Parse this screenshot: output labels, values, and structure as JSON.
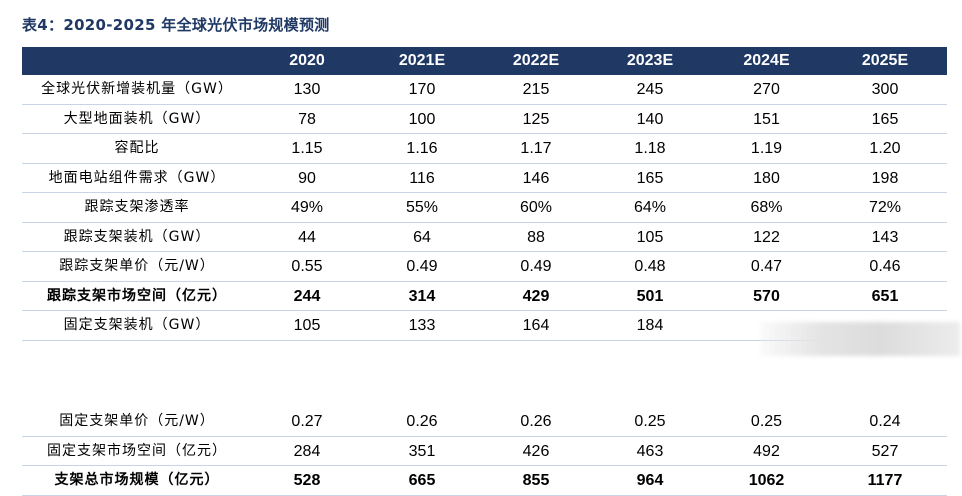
{
  "title": "表4：2020-2025 年全球光伏市场规模预测",
  "header": [
    "",
    "2020",
    "2021E",
    "2022E",
    "2023E",
    "2024E",
    "2025E"
  ],
  "rows_top": [
    {
      "label": "全球光伏新增装机量（GW）",
      "values": [
        "130",
        "170",
        "215",
        "245",
        "270",
        "300"
      ],
      "bold": false
    },
    {
      "label": "大型地面装机（GW）",
      "values": [
        "78",
        "100",
        "125",
        "140",
        "151",
        "165"
      ],
      "bold": false
    },
    {
      "label": "容配比",
      "values": [
        "1.15",
        "1.16",
        "1.17",
        "1.18",
        "1.19",
        "1.20"
      ],
      "bold": false
    },
    {
      "label": "地面电站组件需求（GW）",
      "values": [
        "90",
        "116",
        "146",
        "165",
        "180",
        "198"
      ],
      "bold": false
    },
    {
      "label": "跟踪支架渗透率",
      "values": [
        "49%",
        "55%",
        "60%",
        "64%",
        "68%",
        "72%"
      ],
      "bold": false
    },
    {
      "label": "跟踪支架装机（GW）",
      "values": [
        "44",
        "64",
        "88",
        "105",
        "122",
        "143"
      ],
      "bold": false
    },
    {
      "label": "跟踪支架单价（元/W）",
      "values": [
        "0.55",
        "0.49",
        "0.49",
        "0.48",
        "0.47",
        "0.46"
      ],
      "bold": false
    },
    {
      "label": "跟踪支架市场空间（亿元）",
      "values": [
        "244",
        "314",
        "429",
        "501",
        "570",
        "651"
      ],
      "bold": true
    },
    {
      "label": "固定支架装机（GW）",
      "values": [
        "105",
        "133",
        "164",
        "184",
        "",
        ""
      ],
      "bold": false
    }
  ],
  "rows_bottom": [
    {
      "label": "固定支架单价（元/W）",
      "values": [
        "0.27",
        "0.26",
        "0.26",
        "0.25",
        "0.25",
        "0.24"
      ],
      "bold": false
    },
    {
      "label": "固定支架市场空间（亿元）",
      "values": [
        "284",
        "351",
        "426",
        "463",
        "492",
        "527"
      ],
      "bold": false
    },
    {
      "label": "支架总市场规模（亿元）",
      "values": [
        "528",
        "665",
        "855",
        "964",
        "1062",
        "1177"
      ],
      "bold": true
    }
  ]
}
